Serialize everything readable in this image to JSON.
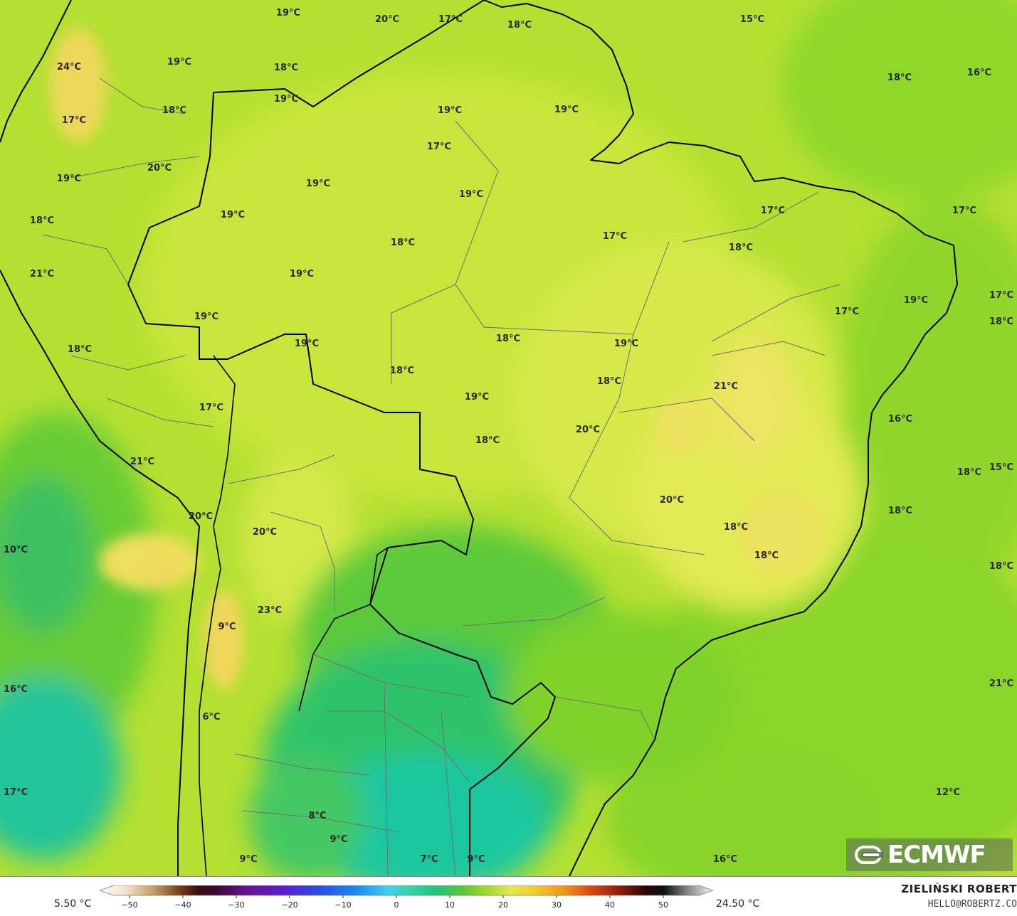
{
  "legend": {
    "min_label": "5.50 °C",
    "max_label": "24.50 °C",
    "ticks": [
      "−50",
      "−40",
      "−30",
      "−20",
      "−10",
      "0",
      "10",
      "20",
      "30",
      "40",
      "50"
    ]
  },
  "credit": {
    "author": "ZIELIŃSKI ROBERT",
    "email": "HELLO@ROBERTZ.CO"
  },
  "logo": {
    "text": "ECMWF"
  },
  "colors": {
    "land_yellow_green": "#c6e63a",
    "warm_yellow": "#eee45a",
    "green": "#7ccf1e",
    "dark_green": "#3fc23a",
    "teal": "#1fc7a0",
    "coast": "#000000",
    "borders": "#666666"
  },
  "temperature_labels": [
    {
      "text": "19°C"
    },
    {
      "text": "20°C"
    },
    {
      "text": "17°C"
    },
    {
      "text": "18°C"
    },
    {
      "text": "15°C"
    },
    {
      "text": "24°C"
    },
    {
      "text": "19°C"
    },
    {
      "text": "18°C"
    },
    {
      "text": "18°C"
    },
    {
      "text": "16°C"
    },
    {
      "text": "19°C"
    },
    {
      "text": "18°C"
    },
    {
      "text": "19°C"
    },
    {
      "text": "19°C"
    },
    {
      "text": "17°C"
    },
    {
      "text": "17°C"
    },
    {
      "text": "20°C"
    },
    {
      "text": "19°C"
    },
    {
      "text": "19°C"
    },
    {
      "text": "19°C"
    },
    {
      "text": "19°C"
    },
    {
      "text": "17°C"
    },
    {
      "text": "17°C"
    },
    {
      "text": "18°C"
    },
    {
      "text": "18°C"
    },
    {
      "text": "17°C"
    },
    {
      "text": "18°C"
    },
    {
      "text": "21°C"
    },
    {
      "text": "19°C"
    },
    {
      "text": "19°C"
    },
    {
      "text": "17°C"
    },
    {
      "text": "17°C"
    },
    {
      "text": "19°C"
    },
    {
      "text": "18°C"
    },
    {
      "text": "18°C"
    },
    {
      "text": "19°C"
    },
    {
      "text": "18°C"
    },
    {
      "text": "19°C"
    },
    {
      "text": "18°C"
    },
    {
      "text": "21°C"
    },
    {
      "text": "18°C"
    },
    {
      "text": "17°C"
    },
    {
      "text": "19°C"
    },
    {
      "text": "20°C"
    },
    {
      "text": "16°C"
    },
    {
      "text": "21°C"
    },
    {
      "text": "18°C"
    },
    {
      "text": "15°C"
    },
    {
      "text": "20°C"
    },
    {
      "text": "18°C"
    },
    {
      "text": "18°C"
    },
    {
      "text": "10°C"
    },
    {
      "text": "20°C"
    },
    {
      "text": "18°C"
    },
    {
      "text": "20°C"
    },
    {
      "text": "18°C"
    },
    {
      "text": "18°C"
    },
    {
      "text": "23°C"
    },
    {
      "text": "9°C"
    },
    {
      "text": "16°C"
    },
    {
      "text": "21°C"
    },
    {
      "text": "6°C"
    },
    {
      "text": "17°C"
    },
    {
      "text": "12°C"
    },
    {
      "text": "8°C"
    },
    {
      "text": "9°C"
    },
    {
      "text": "9°C"
    },
    {
      "text": "7°C"
    },
    {
      "text": "9°C"
    },
    {
      "text": "16°C"
    }
  ]
}
